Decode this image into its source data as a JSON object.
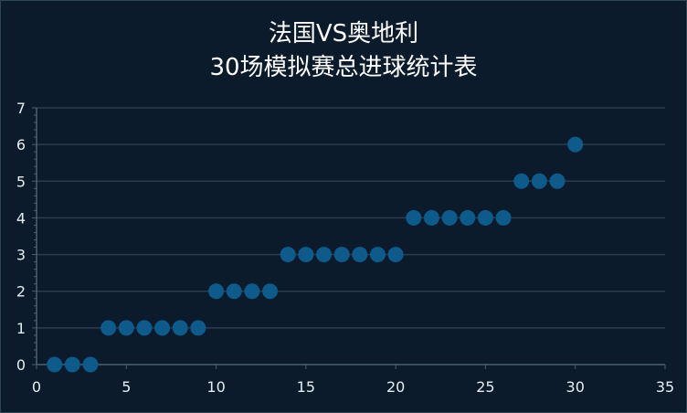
{
  "chart_data": {
    "type": "scatter",
    "title": "法国VS奥地利",
    "subtitle": "30场模拟赛总进球统计表",
    "xlabel": "",
    "ylabel": "",
    "xlim": [
      0,
      35
    ],
    "ylim": [
      0,
      7
    ],
    "xticks": [
      0,
      5,
      10,
      15,
      20,
      25,
      30,
      35
    ],
    "yticks": [
      0,
      1,
      2,
      3,
      4,
      5,
      6,
      7
    ],
    "grid": "horizontal",
    "colors": {
      "point": "#0e5a8a",
      "grid": "#2a3d4f",
      "axis": "#4a6072",
      "background": "#0c1b2b"
    },
    "series": [
      {
        "x": [
          1,
          2,
          3,
          4,
          5,
          6,
          7,
          8,
          9,
          10,
          11,
          12,
          13,
          14,
          15,
          16,
          17,
          18,
          19,
          20,
          21,
          22,
          23,
          24,
          25,
          26,
          27,
          28,
          29,
          30
        ],
        "y": [
          0,
          0,
          0,
          1,
          1,
          1,
          1,
          1,
          1,
          2,
          2,
          2,
          2,
          3,
          3,
          3,
          3,
          3,
          3,
          3,
          4,
          4,
          4,
          4,
          4,
          4,
          5,
          5,
          5,
          6
        ]
      }
    ]
  }
}
